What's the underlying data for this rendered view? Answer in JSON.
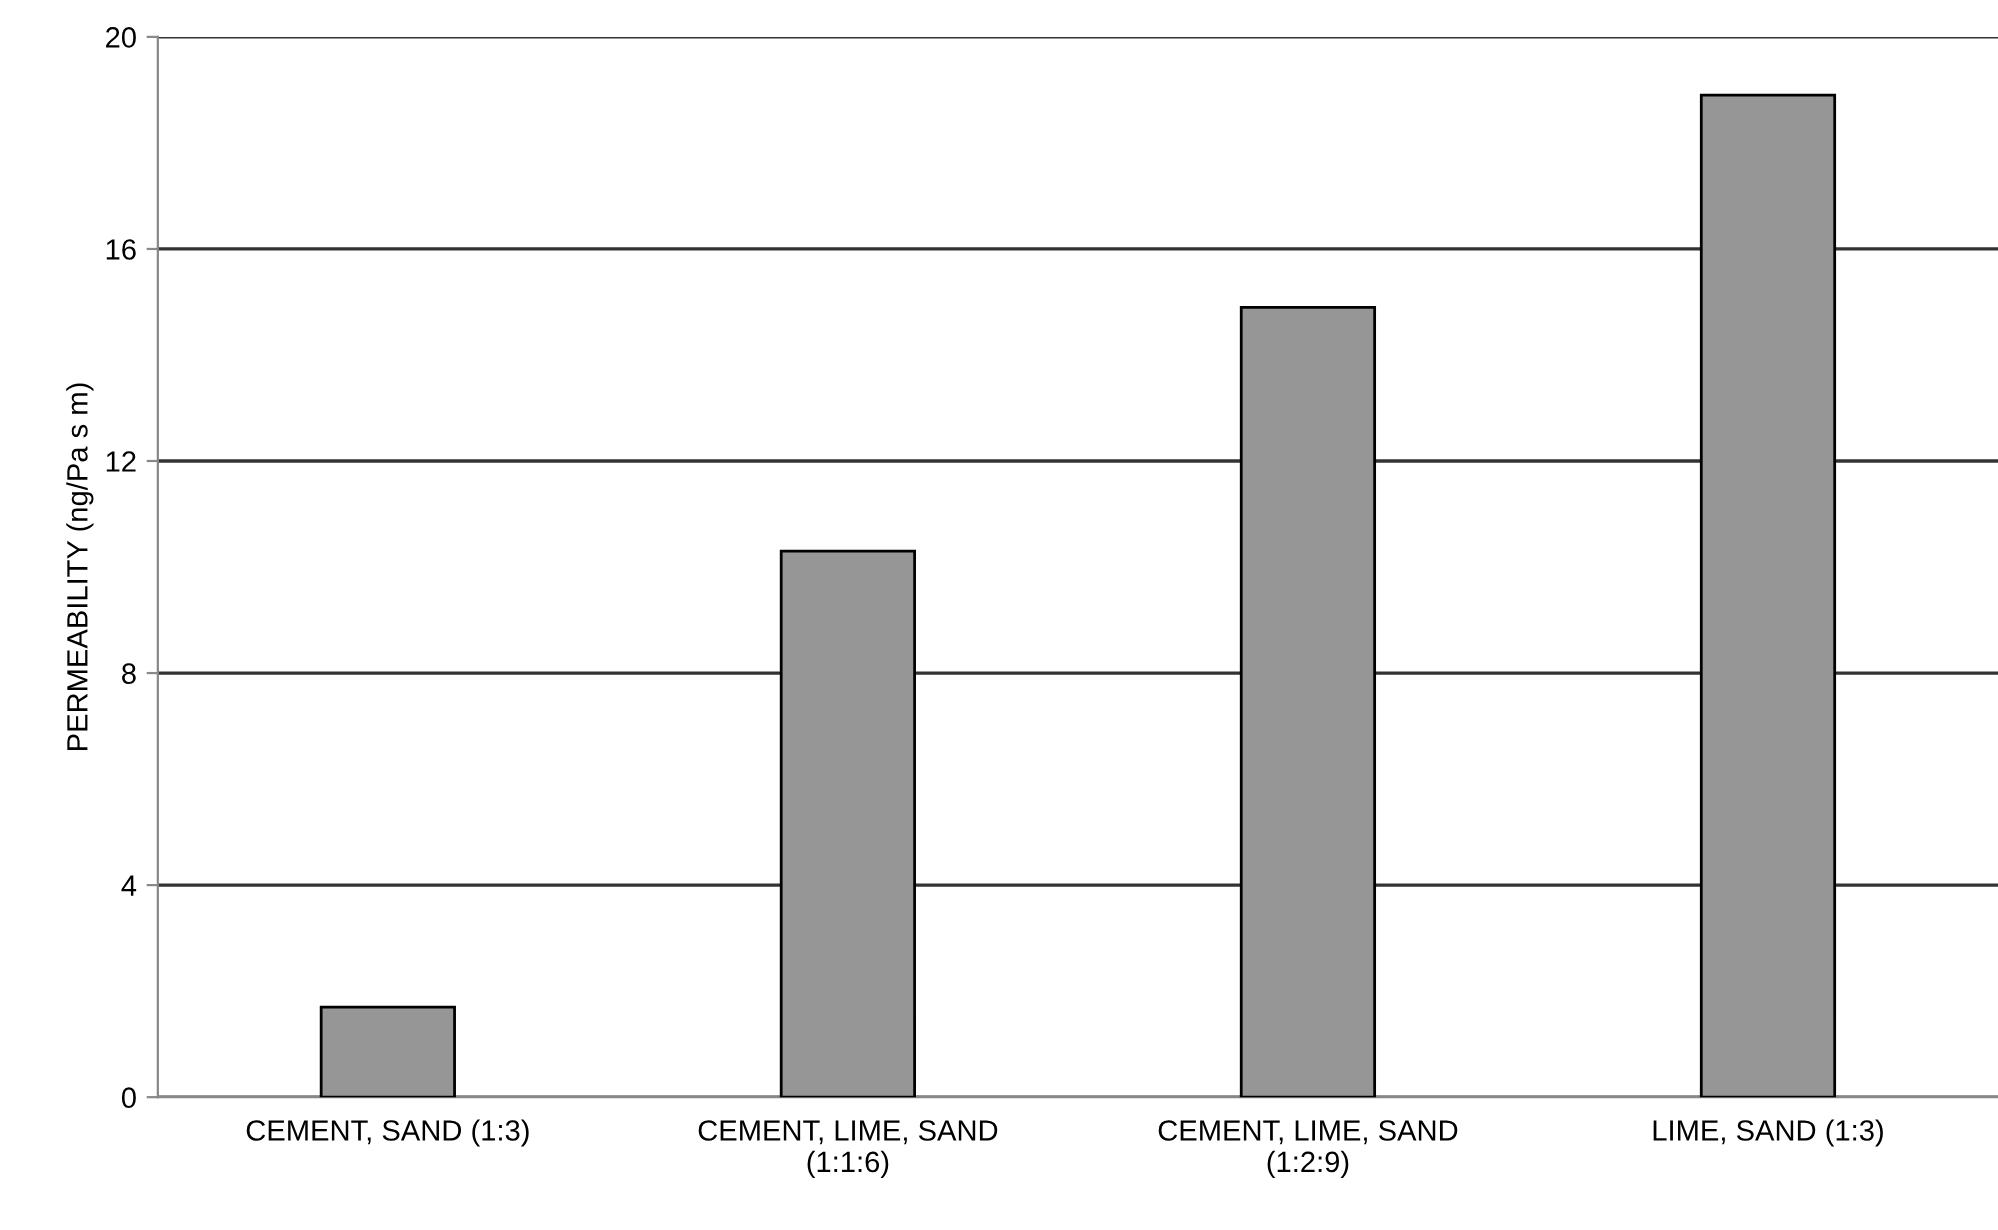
{
  "chart_data": {
    "type": "bar",
    "ylabel": "PERMEABILITY (ng/Pa s m)",
    "categories": [
      "CEMENT, SAND (1:3)",
      "CEMENT, LIME, SAND\n(1:1:6)",
      "CEMENT, LIME, SAND\n(1:2:9)",
      "LIME, SAND (1:3)"
    ],
    "values": [
      1.7,
      10.3,
      14.9,
      18.9
    ],
    "color": "#969696",
    "ylim": [
      0,
      20
    ],
    "yticks": [
      0,
      4,
      8,
      12,
      16,
      20
    ],
    "grid": "y",
    "legend": false
  }
}
